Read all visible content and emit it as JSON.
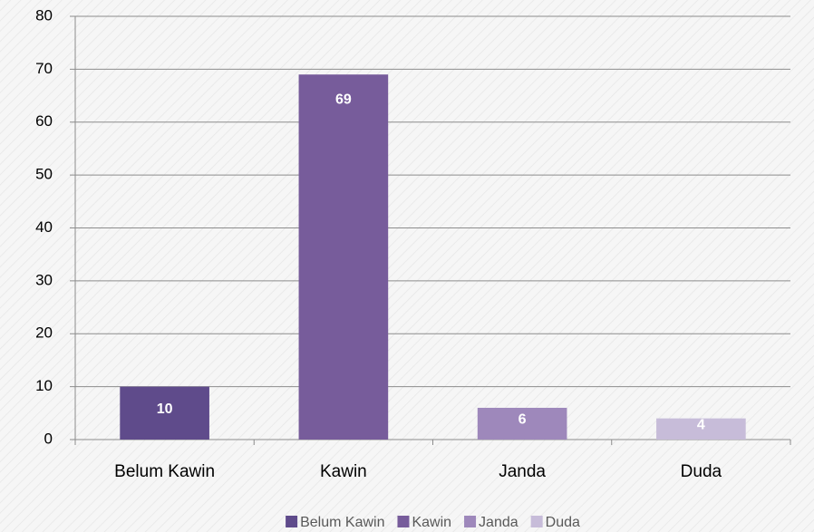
{
  "chart_data": {
    "type": "bar",
    "categories": [
      "Belum Kawin",
      "Kawin",
      "Janda",
      "Duda"
    ],
    "values": [
      10,
      69,
      6,
      4
    ],
    "colors": [
      "#5f4b8b",
      "#775c9b",
      "#9e88bb",
      "#c7bcd9"
    ],
    "ylim": [
      0,
      80
    ],
    "yticks": [
      0,
      10,
      20,
      30,
      40,
      50,
      60,
      70,
      80
    ],
    "grid": true,
    "legend": "bottom"
  }
}
